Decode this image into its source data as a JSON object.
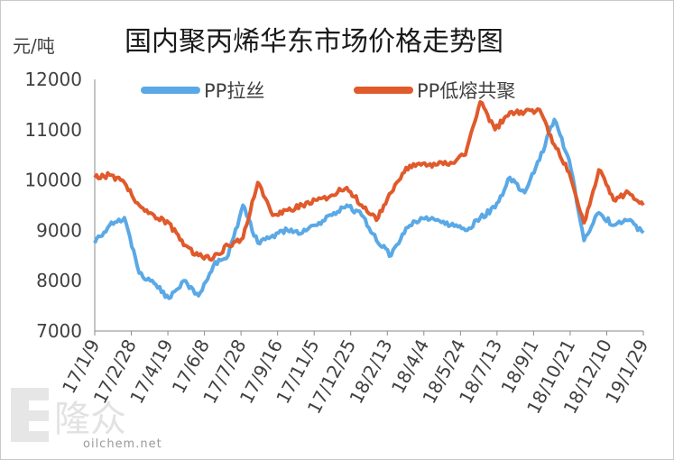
{
  "chart_data": {
    "type": "line",
    "title": "国内聚丙烯华东市场价格走势图",
    "ylabel": "元/吨",
    "ylim": [
      7000,
      12000
    ],
    "yticks": [
      "12000",
      "11000",
      "10000",
      "9000",
      "8000",
      "7000"
    ],
    "xticks": [
      "17/1/9",
      "17/2/28",
      "17/4/19",
      "17/6/8",
      "17/7/28",
      "17/9/16",
      "17/11/5",
      "17/12/25",
      "18/2/13",
      "18/4/4",
      "18/5/24",
      "18/7/13",
      "18/9/1",
      "18/10/21",
      "18/12/10",
      "19/1/29"
    ],
    "legend": [
      "PP拉丝",
      "PP低熔共聚"
    ],
    "series": [
      {
        "name": "PP拉丝",
        "color": "#5aa9e6",
        "points": [
          [
            0,
            8750
          ],
          [
            1,
            9100
          ],
          [
            2,
            9250
          ],
          [
            3,
            8150
          ],
          [
            4,
            7950
          ],
          [
            5,
            7650
          ],
          [
            6,
            8000
          ],
          [
            7,
            7700
          ],
          [
            8,
            8300
          ],
          [
            9,
            8500
          ],
          [
            10,
            9500
          ],
          [
            11,
            8750
          ],
          [
            12,
            8900
          ],
          [
            13,
            9000
          ],
          [
            14,
            8950
          ],
          [
            15,
            9100
          ],
          [
            16,
            9300
          ],
          [
            17,
            9500
          ],
          [
            18,
            9300
          ],
          [
            19,
            8800
          ],
          [
            20,
            8500
          ],
          [
            21,
            9050
          ],
          [
            22,
            9250
          ],
          [
            23,
            9200
          ],
          [
            24,
            9100
          ],
          [
            25,
            9000
          ],
          [
            26,
            9250
          ],
          [
            27,
            9450
          ],
          [
            28,
            10050
          ],
          [
            29,
            9750
          ],
          [
            30,
            10400
          ],
          [
            31,
            11200
          ],
          [
            32,
            10400
          ],
          [
            33,
            8800
          ],
          [
            34,
            9350
          ],
          [
            35,
            9100
          ],
          [
            36,
            9200
          ],
          [
            37,
            8950
          ]
        ]
      },
      {
        "name": "PP低熔共聚",
        "color": "#e05a2b",
        "points": [
          [
            0,
            10050
          ],
          [
            1,
            10100
          ],
          [
            2,
            9950
          ],
          [
            3,
            9500
          ],
          [
            4,
            9300
          ],
          [
            5,
            9150
          ],
          [
            6,
            8700
          ],
          [
            7,
            8500
          ],
          [
            8,
            8450
          ],
          [
            9,
            8700
          ],
          [
            10,
            8850
          ],
          [
            11,
            9950
          ],
          [
            12,
            9300
          ],
          [
            13,
            9400
          ],
          [
            14,
            9500
          ],
          [
            15,
            9600
          ],
          [
            16,
            9700
          ],
          [
            17,
            9850
          ],
          [
            18,
            9500
          ],
          [
            19,
            9200
          ],
          [
            20,
            9750
          ],
          [
            21,
            10250
          ],
          [
            22,
            10300
          ],
          [
            23,
            10300
          ],
          [
            24,
            10350
          ],
          [
            25,
            10500
          ],
          [
            26,
            11550
          ],
          [
            27,
            11000
          ],
          [
            28,
            11350
          ],
          [
            29,
            11350
          ],
          [
            30,
            11400
          ],
          [
            31,
            10700
          ],
          [
            32,
            10150
          ],
          [
            33,
            9150
          ],
          [
            34,
            10200
          ],
          [
            35,
            9600
          ],
          [
            36,
            9750
          ],
          [
            37,
            9500
          ]
        ]
      }
    ]
  },
  "watermark": {
    "text": "oilchem.net",
    "logo_glyph": "隆众"
  }
}
